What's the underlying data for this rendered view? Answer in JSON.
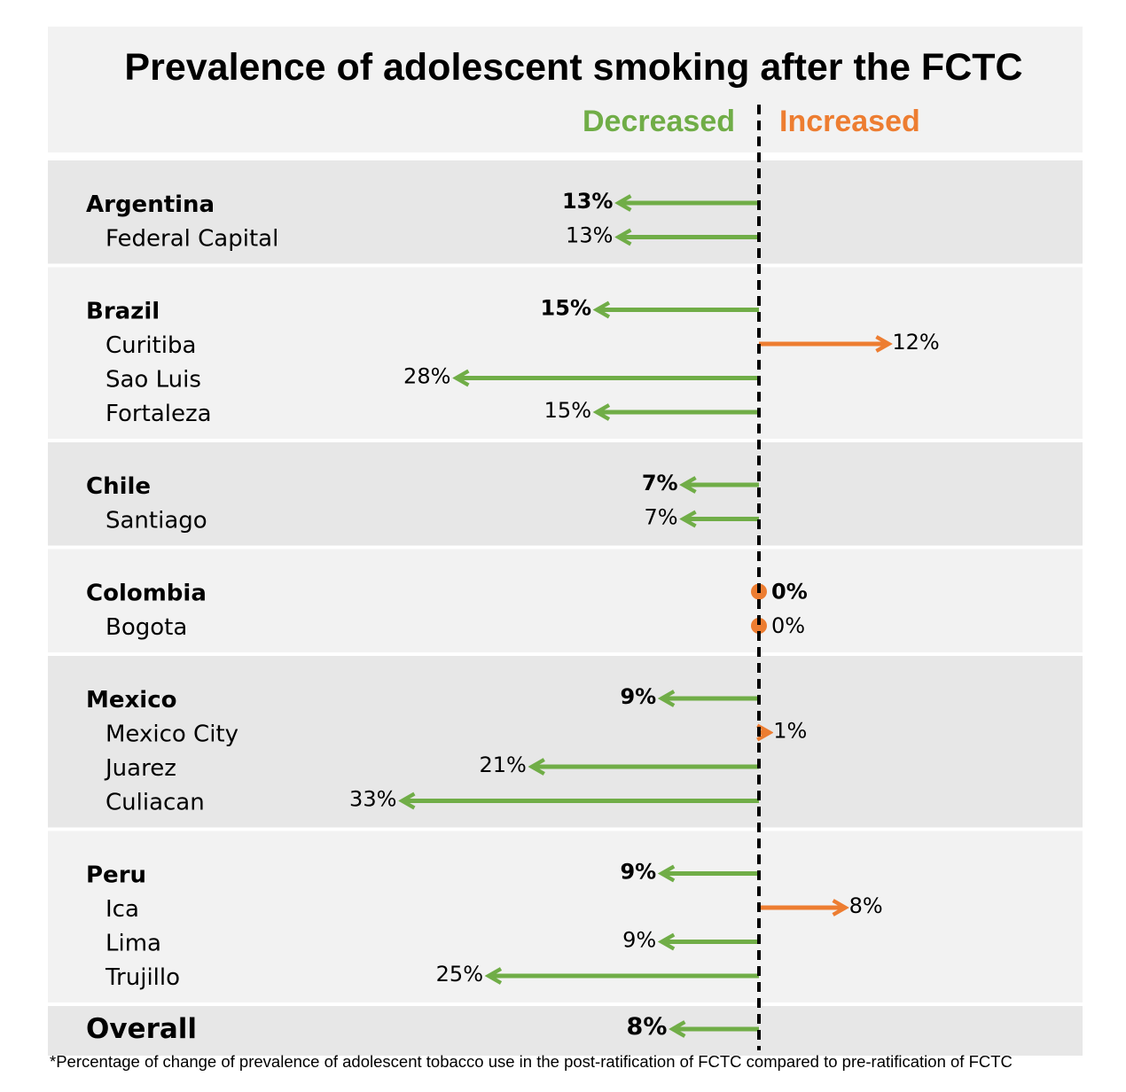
{
  "chart_data": {
    "type": "diverging-arrow",
    "title": "Prevalence of adolescent smoking after the FCTC",
    "legend": {
      "decreased": "Decreased",
      "increased": "Increased"
    },
    "unit": "%",
    "xlim": [
      -33,
      12
    ],
    "colors": {
      "decrease": "#70ad47",
      "increase": "#ed7d31",
      "band_dark": "#e7e7e7",
      "band_light": "#f2f2f2",
      "text": "#000000"
    },
    "groups": [
      {
        "country": "Argentina",
        "value": -13,
        "label": "13%",
        "cities": [
          {
            "name": "Federal Capital",
            "value": -13,
            "label": "13%"
          }
        ]
      },
      {
        "country": "Brazil",
        "value": -15,
        "label": "15%",
        "cities": [
          {
            "name": "Curitiba",
            "value": 12,
            "label": "12%"
          },
          {
            "name": "Sao Luis",
            "value": -28,
            "label": "28%"
          },
          {
            "name": "Fortaleza",
            "value": -15,
            "label": "15%"
          }
        ]
      },
      {
        "country": "Chile",
        "value": -7,
        "label": "7%",
        "cities": [
          {
            "name": "Santiago",
            "value": -7,
            "label": "7%"
          }
        ]
      },
      {
        "country": "Colombia",
        "value": 0,
        "label": "0%",
        "cities": [
          {
            "name": "Bogota",
            "value": 0,
            "label": "0%"
          }
        ]
      },
      {
        "country": "Mexico",
        "value": -9,
        "label": "9%",
        "cities": [
          {
            "name": "Mexico City",
            "value": 1,
            "label": "1%"
          },
          {
            "name": "Juarez",
            "value": -21,
            "label": "21%"
          },
          {
            "name": "Culiacan",
            "value": -33,
            "label": "33%"
          }
        ]
      },
      {
        "country": "Peru",
        "value": -9,
        "label": "9%",
        "cities": [
          {
            "name": "Ica",
            "value": 8,
            "label": "8%"
          },
          {
            "name": "Lima",
            "value": -9,
            "label": "9%"
          },
          {
            "name": "Trujillo",
            "value": -25,
            "label": "25%"
          }
        ]
      }
    ],
    "overall": {
      "name": "Overall",
      "value": -8,
      "label": "8%"
    },
    "footnote": "*Percentage of change of prevalence of adolescent tobacco use in the post-ratification of FCTC compared to pre-ratification of FCTC"
  }
}
